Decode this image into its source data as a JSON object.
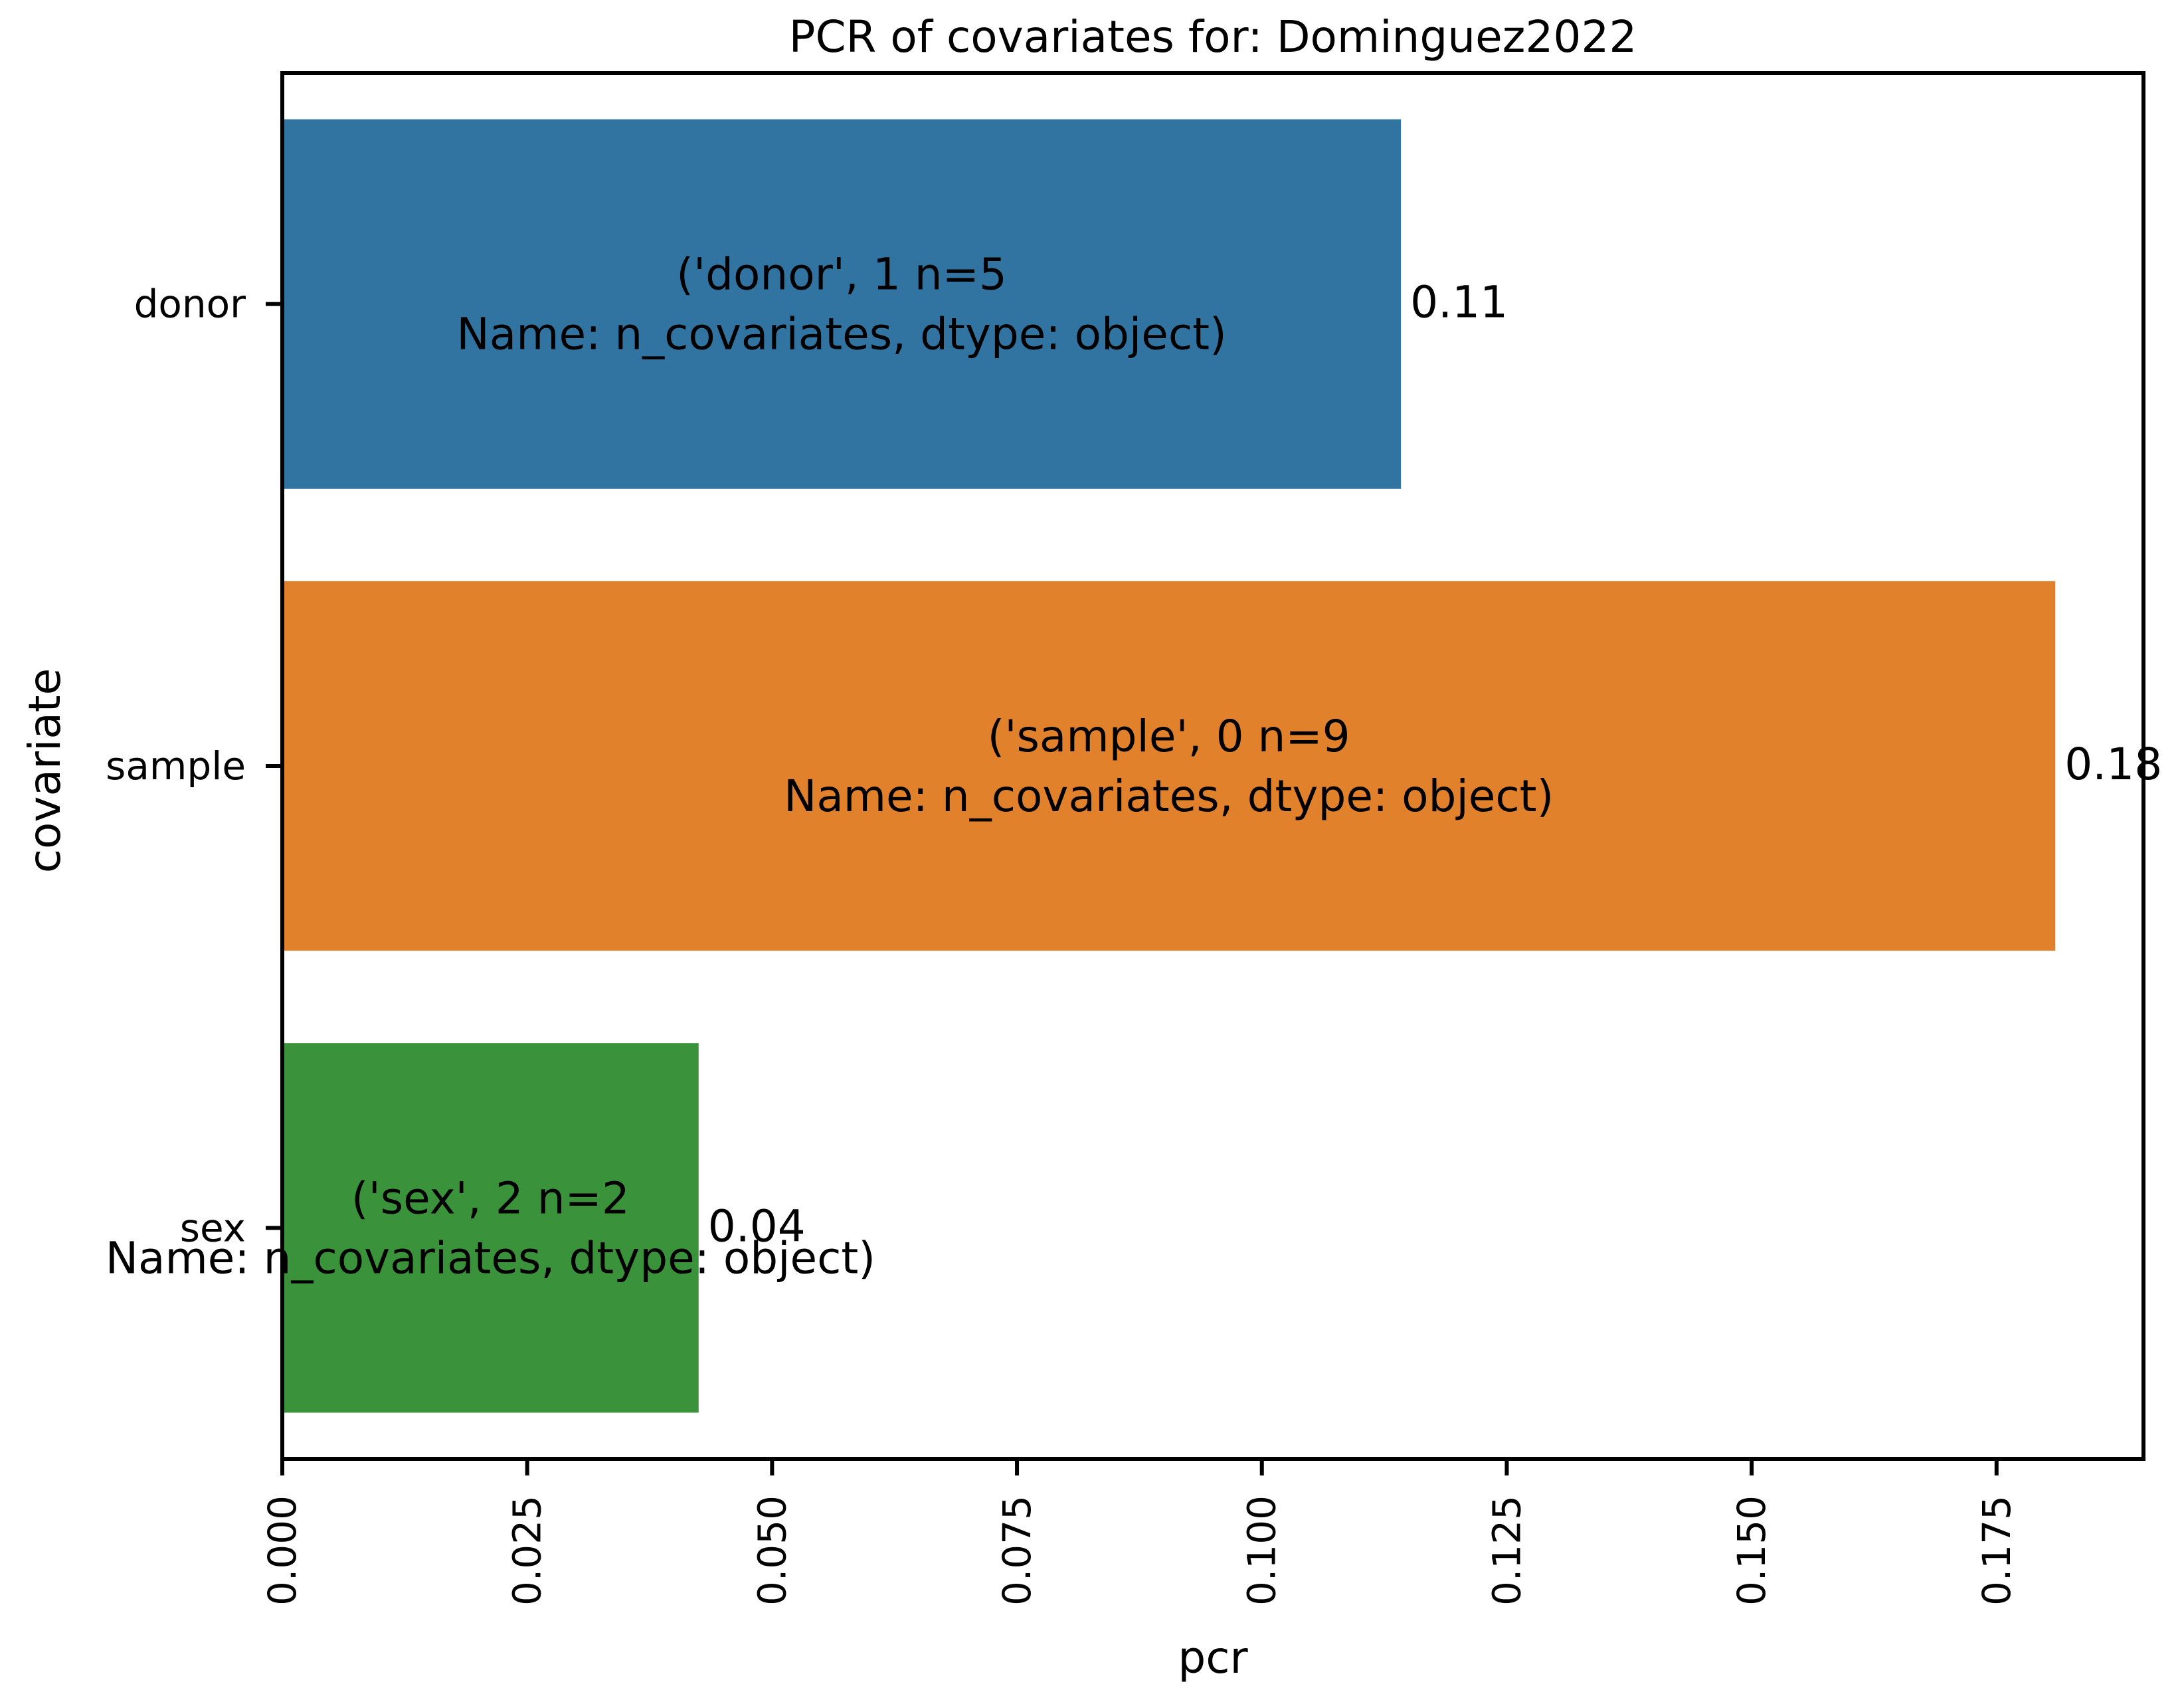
{
  "chart_data": {
    "type": "bar",
    "orientation": "horizontal",
    "title": "PCR of covariates for: Dominguez2022",
    "xlabel": "pcr",
    "ylabel": "covariate",
    "xlim": [
      0,
      0.19
    ],
    "x_ticks": [
      0,
      0.025,
      0.05,
      0.075,
      0.1,
      0.125,
      0.15,
      0.175
    ],
    "x_tick_labels": [
      "0.000",
      "0.025",
      "0.050",
      "0.075",
      "0.100",
      "0.125",
      "0.150",
      "0.175"
    ],
    "categories": [
      "donor",
      "sample",
      "sex"
    ],
    "values": [
      0.1142,
      0.181,
      0.0425
    ],
    "value_labels": [
      "0.11",
      "0.18",
      "0.04"
    ],
    "bar_annotations": [
      [
        "('donor', 1    n=5",
        "Name: n_covariates, dtype: object)"
      ],
      [
        "('sample', 0    n=9",
        "Name: n_covariates, dtype: object)"
      ],
      [
        "('sex', 2    n=2",
        "Name: n_covariates, dtype: object)"
      ]
    ],
    "colors": [
      "#3274a1",
      "#e1812c",
      "#3a923a"
    ],
    "grid": false,
    "legend": false
  }
}
